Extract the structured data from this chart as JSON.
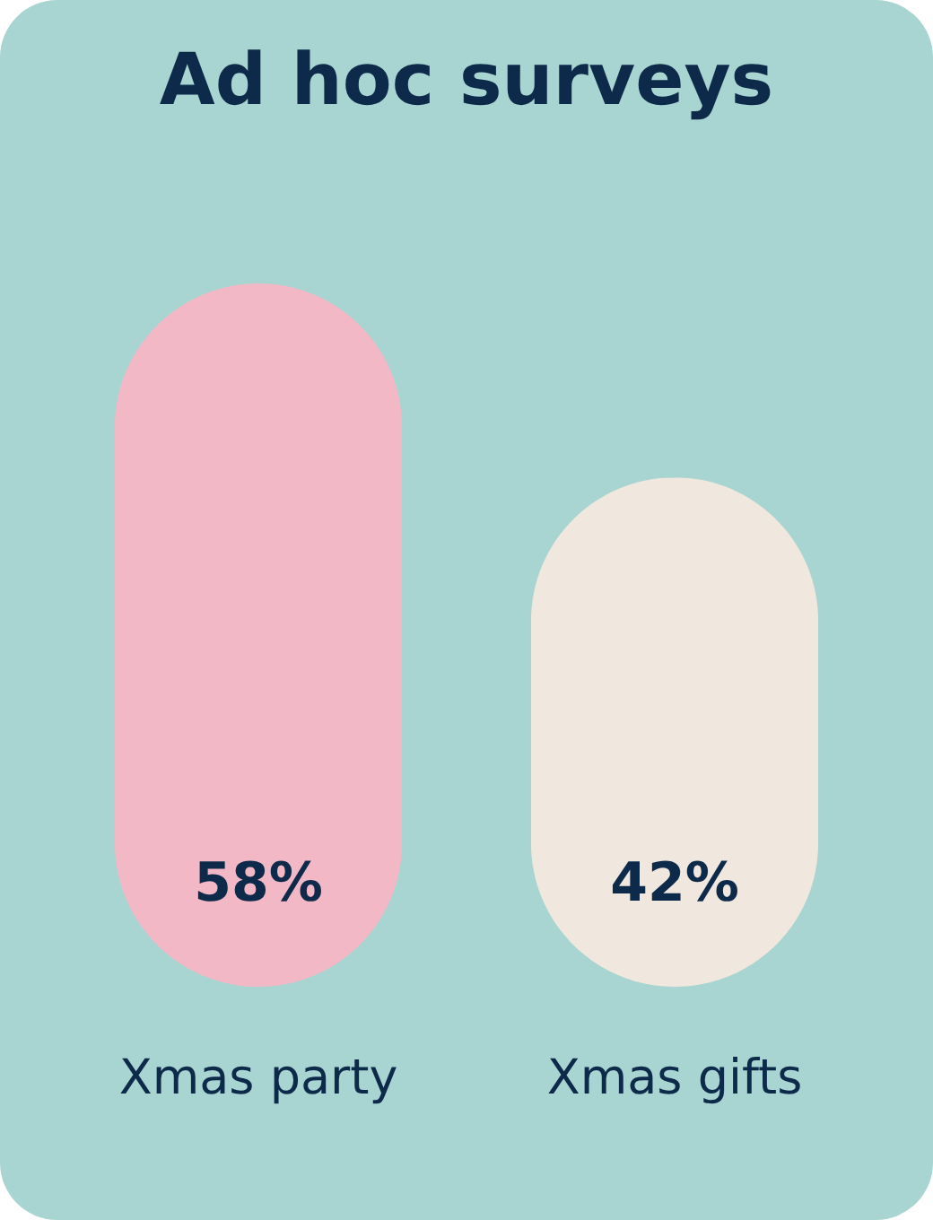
{
  "chart_data": {
    "type": "bar",
    "title": "Ad hoc surveys",
    "categories": [
      "Xmas party",
      "Xmas gifts"
    ],
    "values": [
      58,
      42
    ],
    "colors": [
      "#f2b8c6",
      "#f0e7de"
    ],
    "value_labels": [
      "58%",
      "42%"
    ]
  }
}
